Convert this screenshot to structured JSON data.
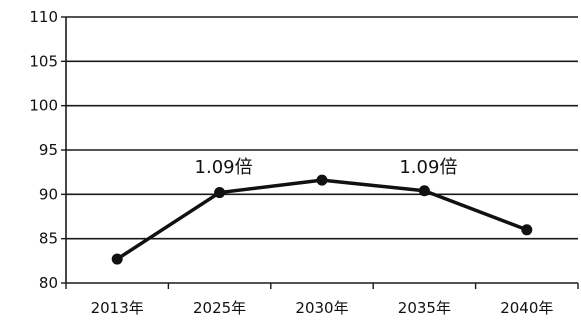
{
  "chart_data": {
    "type": "line",
    "title": "",
    "xlabel": "",
    "ylabel": "",
    "categories": [
      "2013年",
      "2025年",
      "2030年",
      "2035年",
      "2040年"
    ],
    "series": [
      {
        "values": [
          82.7,
          90.2,
          91.6,
          90.4,
          86.0
        ],
        "color": "#111111"
      }
    ],
    "ylim": [
      80,
      110
    ],
    "yticks": [
      80,
      85,
      90,
      95,
      100,
      105,
      110
    ],
    "grid": true,
    "legend": "none",
    "annotations": [
      {
        "text": "1.09倍",
        "category_index": 1,
        "y": 92.4
      },
      {
        "text": "1.09倍",
        "category_index": 3,
        "y": 92.4
      }
    ]
  }
}
